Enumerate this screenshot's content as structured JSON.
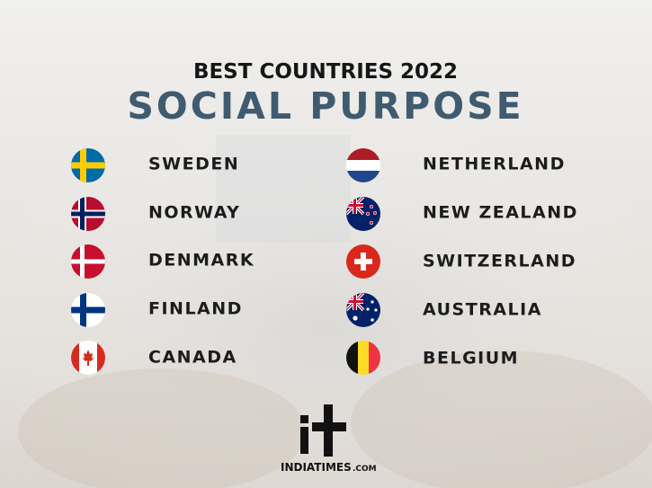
{
  "header": {
    "title": "BEST COUNTRIES 2022",
    "subtitle": "SOCIAL PURPOSE"
  },
  "countries": {
    "left": [
      "SWEDEN",
      "NORWAY",
      "DENMARK",
      "FINLAND",
      "CANADA"
    ],
    "right": [
      "NETHERLAND",
      "NEW ZEALAND",
      "SWITZERLAND",
      "AUSTRALIA",
      "BELGIUM"
    ]
  },
  "brand": {
    "name": "INDIATIMES",
    "suffix": ".COM"
  }
}
